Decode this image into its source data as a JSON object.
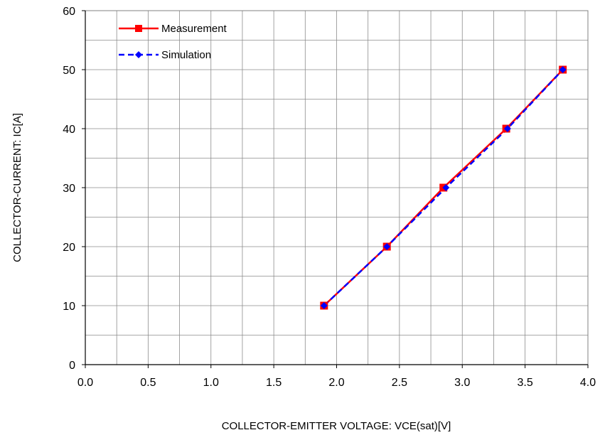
{
  "chart_data": {
    "type": "line",
    "xlabel": "COLLECTOR-EMITTER VOLTAGE: VCE(sat)[V]",
    "ylabel": "COLLECTOR-CURRENT: IC[A]",
    "xlim": [
      0.0,
      4.0
    ],
    "ylim": [
      0,
      60
    ],
    "x_ticks": [
      "0.0",
      "0.5",
      "1.0",
      "1.5",
      "2.0",
      "2.5",
      "3.0",
      "3.5",
      "4.0"
    ],
    "y_ticks": [
      "0",
      "10",
      "20",
      "30",
      "40",
      "50",
      "60"
    ],
    "grid": true,
    "legend_position": "top-left",
    "series": [
      {
        "name": "Measurement",
        "color": "#ff0000",
        "marker": "square",
        "line_style": "solid",
        "x": [
          1.9,
          2.4,
          2.85,
          3.35,
          3.8
        ],
        "y": [
          10,
          20,
          30,
          40,
          50
        ]
      },
      {
        "name": "Simulation",
        "color": "#0000ff",
        "marker": "diamond",
        "line_style": "dashed",
        "x": [
          1.9,
          2.4,
          2.87,
          3.36,
          3.8
        ],
        "y": [
          10,
          20,
          30,
          40,
          50
        ]
      }
    ]
  }
}
